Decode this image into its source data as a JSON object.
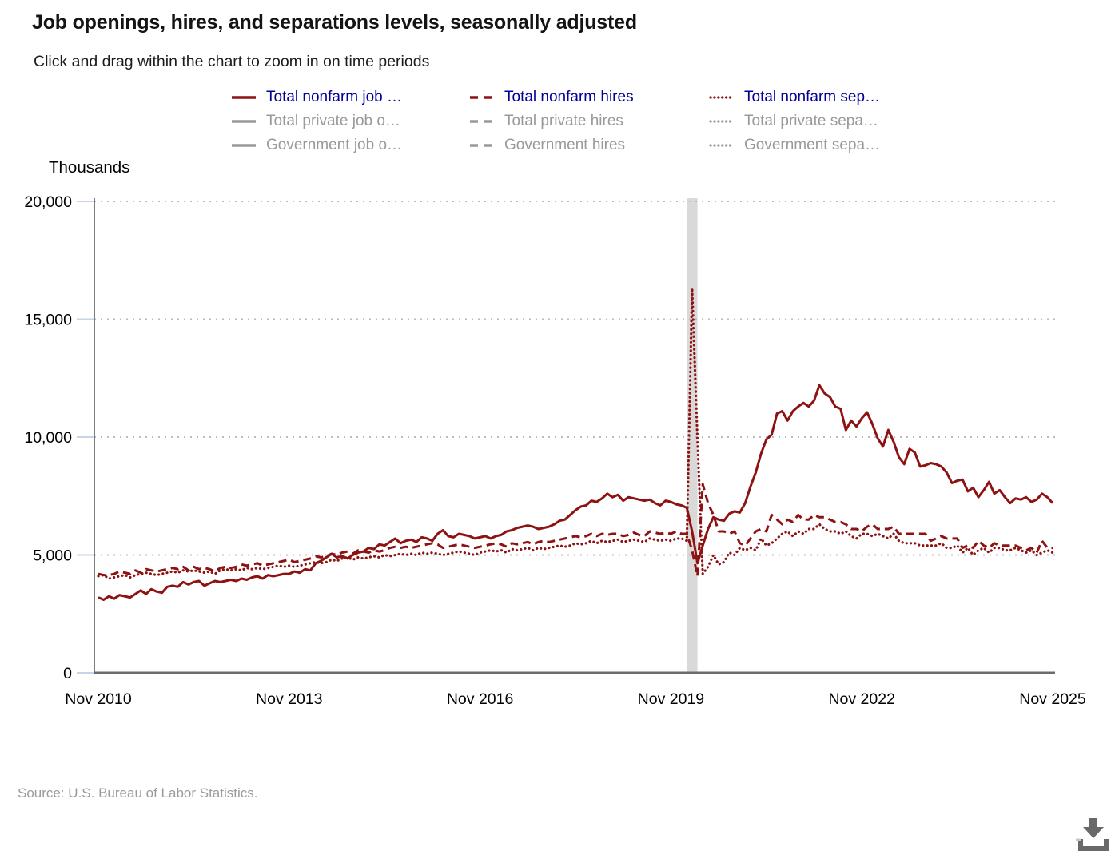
{
  "header": {
    "title": "Job openings, hires, and separations levels, seasonally adjusted",
    "subtitle": "Click and drag within the chart to zoom in on time periods"
  },
  "footer": {
    "source": "Source: U.S. Bureau of Labor Statistics."
  },
  "icons": {
    "download": "download-icon"
  },
  "colors": {
    "series_red": "#8e1212",
    "active_legend_text": "#000099",
    "inactive_gray": "#999999",
    "recession_band": "#d9d9d9",
    "grid": "#bbbbbb",
    "axis": "#7d7d7d",
    "baseline": "#6b6b6b",
    "tick": "#c7d3e6",
    "icon_gray": "#696969"
  },
  "legend": {
    "columns": [
      {
        "items": [
          {
            "id": "nonfarm-job-openings",
            "label": "Total nonfarm job …",
            "style": "solid",
            "active": true
          },
          {
            "id": "private-job-openings",
            "label": "Total private job o…",
            "style": "solid",
            "active": false
          },
          {
            "id": "government-job-openings",
            "label": "Government job o…",
            "style": "solid",
            "active": false
          }
        ]
      },
      {
        "items": [
          {
            "id": "nonfarm-hires",
            "label": "Total nonfarm hires",
            "style": "dashed",
            "active": true
          },
          {
            "id": "private-hires",
            "label": "Total private hires",
            "style": "dashed",
            "active": false
          },
          {
            "id": "government-hires",
            "label": "Government hires",
            "style": "dashed",
            "active": false
          }
        ]
      },
      {
        "items": [
          {
            "id": "nonfarm-separations",
            "label": "Total nonfarm sep…",
            "style": "dotted",
            "active": true
          },
          {
            "id": "private-separations",
            "label": "Total private sepa…",
            "style": "dotted",
            "active": false
          },
          {
            "id": "government-separations",
            "label": "Government sepa…",
            "style": "dotted",
            "active": false
          }
        ]
      }
    ]
  },
  "chart_data": {
    "type": "line",
    "title": "Job openings, hires, and separations levels, seasonally adjusted",
    "xlabel": "",
    "ylabel": "Thousands",
    "ylim": [
      0,
      20000
    ],
    "yticks": [
      0,
      5000,
      10000,
      15000,
      20000
    ],
    "ytick_labels": [
      "0",
      "5,000",
      "10,000",
      "15,000",
      "20,000"
    ],
    "xtick_labels": [
      "Nov 2010",
      "Nov 2013",
      "Nov 2016",
      "Nov 2019",
      "Nov 2022",
      "Nov 2025"
    ],
    "xtick_month_index": [
      0,
      36,
      72,
      108,
      144,
      180
    ],
    "x_start": "Nov 2010",
    "x_end": "Nov 2025",
    "frequency": "monthly",
    "grid": true,
    "legend_position": "top",
    "recession_band_labels": [
      "Feb 2020",
      "Apr 2020"
    ],
    "recession_band_month_indices": [
      111,
      113
    ],
    "series": [
      {
        "id": "nonfarm-job-openings",
        "name": "Total nonfarm job …",
        "style": "solid",
        "active": true,
        "values": [
          3200,
          3100,
          3250,
          3150,
          3300,
          3250,
          3200,
          3350,
          3500,
          3350,
          3550,
          3450,
          3400,
          3650,
          3700,
          3650,
          3850,
          3750,
          3850,
          3900,
          3700,
          3800,
          3900,
          3850,
          3900,
          3950,
          3900,
          4000,
          3950,
          4050,
          4100,
          4000,
          4150,
          4100,
          4150,
          4200,
          4200,
          4300,
          4250,
          4400,
          4350,
          4650,
          4750,
          4900,
          5050,
          4900,
          4950,
          4850,
          5000,
          5100,
          5150,
          5300,
          5250,
          5450,
          5400,
          5550,
          5700,
          5500,
          5600,
          5650,
          5550,
          5750,
          5700,
          5600,
          5900,
          6050,
          5800,
          5750,
          5900,
          5850,
          5800,
          5700,
          5750,
          5800,
          5700,
          5800,
          5850,
          6000,
          6050,
          6150,
          6200,
          6250,
          6200,
          6100,
          6150,
          6200,
          6300,
          6450,
          6500,
          6700,
          6900,
          7050,
          7100,
          7300,
          7250,
          7400,
          7600,
          7450,
          7550,
          7300,
          7450,
          7400,
          7350,
          7300,
          7350,
          7200,
          7100,
          7300,
          7250,
          7150,
          7100,
          7000,
          6000,
          4650,
          5400,
          6100,
          6600,
          6500,
          6450,
          6750,
          6850,
          6800,
          7200,
          7900,
          8500,
          9300,
          9900,
          10100,
          11000,
          11100,
          10700,
          11100,
          11300,
          11450,
          11300,
          11550,
          12200,
          11850,
          11700,
          11300,
          11200,
          10300,
          10700,
          10450,
          10800,
          11050,
          10550,
          9950,
          9600,
          10300,
          9800,
          9150,
          8850,
          9500,
          9350,
          8750,
          8800,
          8900,
          8850,
          8750,
          8500,
          8050,
          8150,
          8200,
          7700,
          7850,
          7450,
          7750,
          8100,
          7600,
          7750,
          7450,
          7200,
          7400,
          7350,
          7450,
          7250,
          7350,
          7600,
          7450,
          7200
        ]
      },
      {
        "id": "nonfarm-hires",
        "name": "Total nonfarm hires",
        "style": "dashed",
        "active": true,
        "values": [
          4200,
          4150,
          4150,
          4200,
          4300,
          4250,
          4200,
          4350,
          4250,
          4400,
          4350,
          4300,
          4350,
          4400,
          4450,
          4400,
          4500,
          4350,
          4500,
          4400,
          4450,
          4400,
          4300,
          4450,
          4500,
          4450,
          4500,
          4600,
          4550,
          4600,
          4650,
          4550,
          4600,
          4650,
          4700,
          4750,
          4800,
          4700,
          4750,
          4800,
          4850,
          4950,
          4900,
          4950,
          5050,
          5000,
          5100,
          5150,
          5050,
          5200,
          5150,
          5100,
          5200,
          5150,
          5200,
          5300,
          5350,
          5300,
          5350,
          5300,
          5350,
          5400,
          5450,
          5500,
          5450,
          5300,
          5350,
          5400,
          5450,
          5400,
          5350,
          5300,
          5350,
          5400,
          5450,
          5500,
          5450,
          5350,
          5500,
          5450,
          5500,
          5550,
          5450,
          5550,
          5600,
          5550,
          5600,
          5650,
          5700,
          5750,
          5800,
          5750,
          5800,
          5900,
          5800,
          5900,
          5850,
          5900,
          5900,
          5800,
          5850,
          5950,
          5850,
          5800,
          6000,
          5950,
          5900,
          5950,
          5900,
          6000,
          5900,
          5900,
          5200,
          4100,
          8000,
          7200,
          6700,
          6000,
          6000,
          5900,
          6000,
          5500,
          5400,
          5700,
          6000,
          6100,
          6000,
          6700,
          6500,
          6300,
          6500,
          6400,
          6700,
          6500,
          6500,
          6700,
          6600,
          6600,
          6500,
          6400,
          6400,
          6300,
          6100,
          6100,
          6000,
          6200,
          6300,
          6100,
          6100,
          6100,
          6200,
          5900,
          5900,
          5900,
          5900,
          5900,
          5900,
          5600,
          5700,
          5800,
          5700,
          5700,
          5700,
          5300,
          5400,
          5300,
          5600,
          5400,
          5300,
          5500,
          5400,
          5400,
          5400,
          5400,
          5300,
          5200,
          5300,
          5100,
          5600,
          5300,
          5300
        ]
      },
      {
        "id": "nonfarm-separations",
        "name": "Total nonfarm sep…",
        "style": "dotted",
        "active": true,
        "values": [
          4100,
          4150,
          4000,
          4050,
          4100,
          4150,
          4050,
          4150,
          4200,
          4250,
          4200,
          4150,
          4200,
          4250,
          4300,
          4250,
          4350,
          4300,
          4350,
          4300,
          4250,
          4300,
          4200,
          4350,
          4400,
          4350,
          4400,
          4350,
          4450,
          4400,
          4450,
          4400,
          4450,
          4500,
          4550,
          4500,
          4550,
          4500,
          4550,
          4600,
          4650,
          4700,
          4650,
          4700,
          4800,
          4750,
          4850,
          4900,
          4800,
          4900,
          4850,
          4900,
          4950,
          4900,
          5000,
          4950,
          5000,
          5050,
          5000,
          5050,
          5000,
          5100,
          5050,
          5100,
          5050,
          5000,
          5050,
          5100,
          5150,
          5100,
          5050,
          5000,
          5100,
          5150,
          5200,
          5150,
          5200,
          5100,
          5250,
          5200,
          5250,
          5300,
          5200,
          5300,
          5250,
          5300,
          5350,
          5400,
          5350,
          5400,
          5500,
          5450,
          5500,
          5600,
          5500,
          5600,
          5550,
          5600,
          5650,
          5550,
          5600,
          5650,
          5600,
          5550,
          5700,
          5650,
          5600,
          5650,
          5600,
          5700,
          5700,
          5600,
          16300,
          9900,
          4200,
          4500,
          5000,
          4600,
          4700,
          5100,
          5000,
          5300,
          5200,
          5300,
          5200,
          5700,
          5400,
          5500,
          5700,
          5900,
          6000,
          5800,
          6000,
          5900,
          6100,
          6100,
          6300,
          6100,
          6000,
          6000,
          5900,
          6000,
          5800,
          5700,
          5900,
          5900,
          5800,
          5900,
          5800,
          5700,
          5900,
          5600,
          5500,
          5500,
          5500,
          5400,
          5400,
          5400,
          5400,
          5500,
          5300,
          5300,
          5400,
          5100,
          5300,
          5000,
          5200,
          5300,
          5100,
          5300,
          5300,
          5200,
          5200,
          5300,
          5200,
          5100,
          5200,
          5000,
          5100,
          5200,
          5100
        ]
      },
      {
        "id": "private-job-openings",
        "name": "Total private job o…",
        "style": "solid",
        "active": false
      },
      {
        "id": "government-job-openings",
        "name": "Government job o…",
        "style": "solid",
        "active": false
      },
      {
        "id": "private-hires",
        "name": "Total private hires",
        "style": "dashed",
        "active": false
      },
      {
        "id": "government-hires",
        "name": "Government hires",
        "style": "dashed",
        "active": false
      },
      {
        "id": "private-separations",
        "name": "Total private sepa…",
        "style": "dotted",
        "active": false
      },
      {
        "id": "government-separations",
        "name": "Government sepa…",
        "style": "dotted",
        "active": false
      }
    ]
  }
}
